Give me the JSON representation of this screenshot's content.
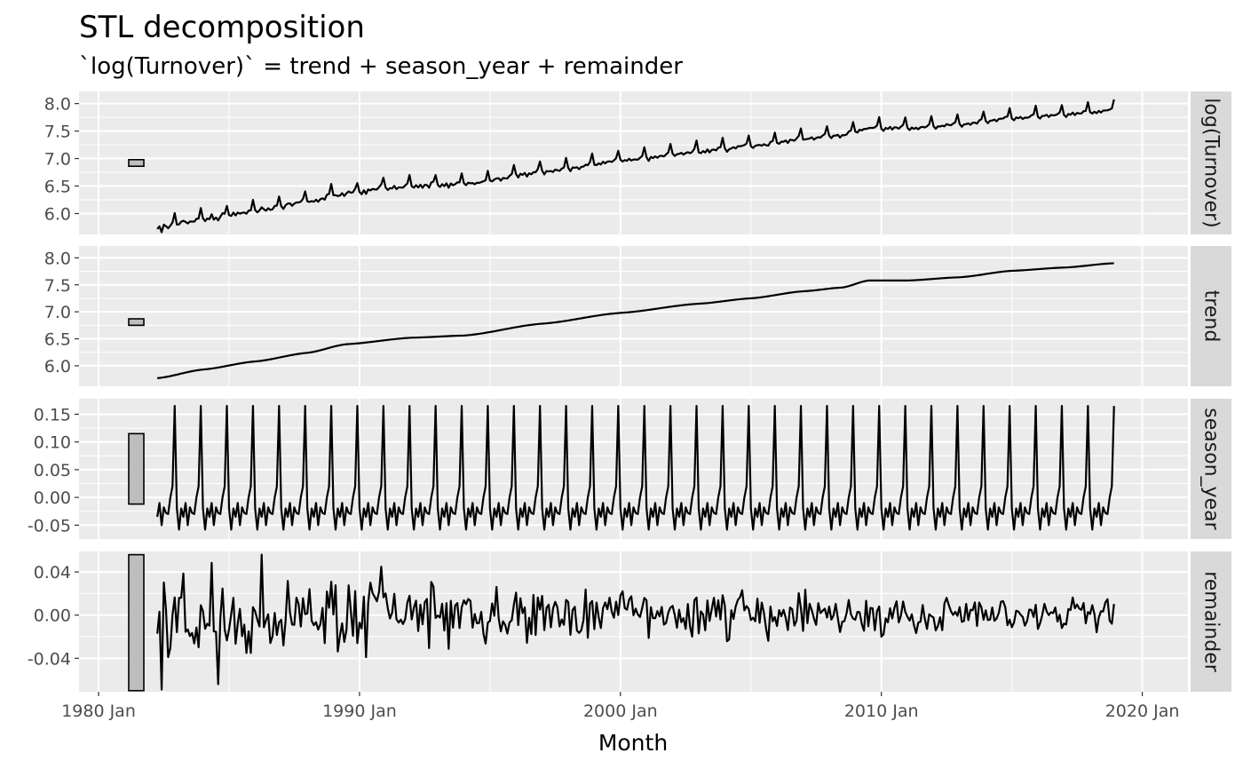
{
  "chart_data": {
    "type": "line",
    "title": "STL decomposition",
    "subtitle": "`log(Turnover)` = trend + season_year + remainder",
    "xlabel": "Month",
    "x_range": [
      "1982-04",
      "2018-12"
    ],
    "x_ticks": [
      "1980 Jan",
      "1990 Jan",
      "2000 Jan",
      "2010 Jan",
      "2020 Jan"
    ],
    "panels": [
      {
        "name": "log(Turnover)",
        "y_range": [
          5.62,
          8.22
        ],
        "y_ticks": [
          "6.0",
          "6.5",
          "7.0",
          "7.5",
          "8.0"
        ],
        "y_tick_values": [
          6.0,
          6.5,
          7.0,
          7.5,
          8.0
        ],
        "scale_bar": [
          6.86,
          6.98
        ],
        "series": "trend + season_year + remainder"
      },
      {
        "name": "trend",
        "y_range": [
          5.62,
          8.22
        ],
        "y_ticks": [
          "6.0",
          "6.5",
          "7.0",
          "7.5",
          "8.0"
        ],
        "y_tick_values": [
          6.0,
          6.5,
          7.0,
          7.5,
          8.0
        ],
        "scale_bar": [
          6.75,
          6.87
        ],
        "trend_knots": [
          [
            1982.25,
            5.77
          ],
          [
            1984.0,
            5.93
          ],
          [
            1986.0,
            6.08
          ],
          [
            1988.0,
            6.24
          ],
          [
            1989.5,
            6.4
          ],
          [
            1992.0,
            6.52
          ],
          [
            1994.0,
            6.56
          ],
          [
            1997.0,
            6.78
          ],
          [
            2000.0,
            6.98
          ],
          [
            2003.0,
            7.15
          ],
          [
            2005.0,
            7.25
          ],
          [
            2007.0,
            7.38
          ],
          [
            2008.5,
            7.45
          ],
          [
            2009.5,
            7.58
          ],
          [
            2011.0,
            7.58
          ],
          [
            2013.0,
            7.64
          ],
          [
            2015.0,
            7.76
          ],
          [
            2017.0,
            7.82
          ],
          [
            2018.9,
            7.9
          ]
        ]
      },
      {
        "name": "season_year",
        "y_range": [
          -0.075,
          0.178
        ],
        "y_ticks": [
          "-0.05",
          "0.00",
          "0.05",
          "0.10",
          "0.15"
        ],
        "y_tick_values": [
          -0.05,
          0.0,
          0.05,
          0.1,
          0.15
        ],
        "scale_bar": [
          -0.012,
          0.115
        ],
        "seasonal_by_month": {
          "Jan": -0.02,
          "Feb": -0.058,
          "Mar": -0.02,
          "Apr": -0.035,
          "May": -0.01,
          "Jun": -0.05,
          "Jul": -0.018,
          "Aug": -0.028,
          "Sep": -0.03,
          "Oct": 0.0,
          "Nov": 0.02,
          "Dec": 0.165
        }
      },
      {
        "name": "remainder",
        "y_range": [
          -0.071,
          0.059
        ],
        "y_ticks": [
          "-0.04",
          "0.00",
          "0.04"
        ],
        "y_tick_values": [
          -0.04,
          0.0,
          0.04
        ],
        "scale_bar": [
          -0.07,
          0.056
        ],
        "amplitude_envelope": [
          [
            1982.25,
            0.035
          ],
          [
            1990,
            0.028
          ],
          [
            2000,
            0.018
          ],
          [
            2010,
            0.014
          ],
          [
            2018.9,
            0.012
          ]
        ]
      }
    ]
  }
}
